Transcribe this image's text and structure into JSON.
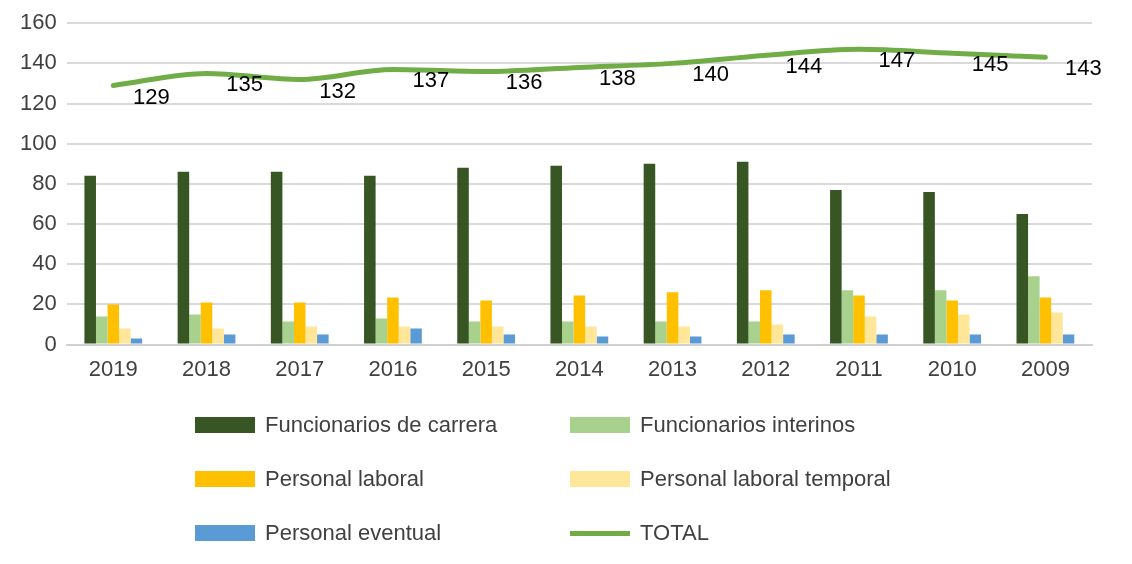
{
  "chart_data": {
    "type": "bar",
    "categories": [
      "2019",
      "2018",
      "2017",
      "2016",
      "2015",
      "2014",
      "2013",
      "2012",
      "2011",
      "2010",
      "2009"
    ],
    "series": [
      {
        "name": "Funcionarios de carrera",
        "color": "#375623",
        "values": [
          84,
          86,
          86,
          84,
          88,
          89,
          90,
          91,
          77,
          76,
          65
        ]
      },
      {
        "name": "Funcionarios interinos",
        "color": "#a9d18e",
        "values": [
          14,
          15,
          11.5,
          13,
          11.5,
          11.5,
          11.5,
          11.5,
          27,
          27,
          34
        ]
      },
      {
        "name": "Personal laboral",
        "color": "#ffc000",
        "values": [
          20,
          21,
          21,
          23.5,
          22,
          24.5,
          26,
          27,
          24.5,
          22,
          23.5
        ]
      },
      {
        "name": "Personal laboral temporal",
        "color": "#ffe699",
        "values": [
          8,
          8,
          9,
          9,
          9,
          9,
          9,
          10,
          14,
          15,
          16
        ]
      },
      {
        "name": "Personal eventual",
        "color": "#5b9bd5",
        "values": [
          3,
          5,
          5,
          8,
          5,
          4,
          4,
          5,
          5,
          5,
          5
        ]
      },
      {
        "name": "TOTAL",
        "type": "line",
        "color": "#70ad47",
        "marker": "none",
        "line_style": "solid",
        "values": [
          129,
          135,
          132,
          137,
          136,
          138,
          140,
          144,
          147,
          145,
          143
        ],
        "value_labels": [
          "129",
          "135",
          "132",
          "137",
          "136",
          "138",
          "140",
          "144",
          "147",
          "145",
          "143"
        ]
      }
    ],
    "ylim": [
      0,
      160
    ],
    "yticks": [
      0,
      20,
      40,
      60,
      80,
      100,
      120,
      140,
      160
    ],
    "grid": "y",
    "legend": "bottom"
  }
}
